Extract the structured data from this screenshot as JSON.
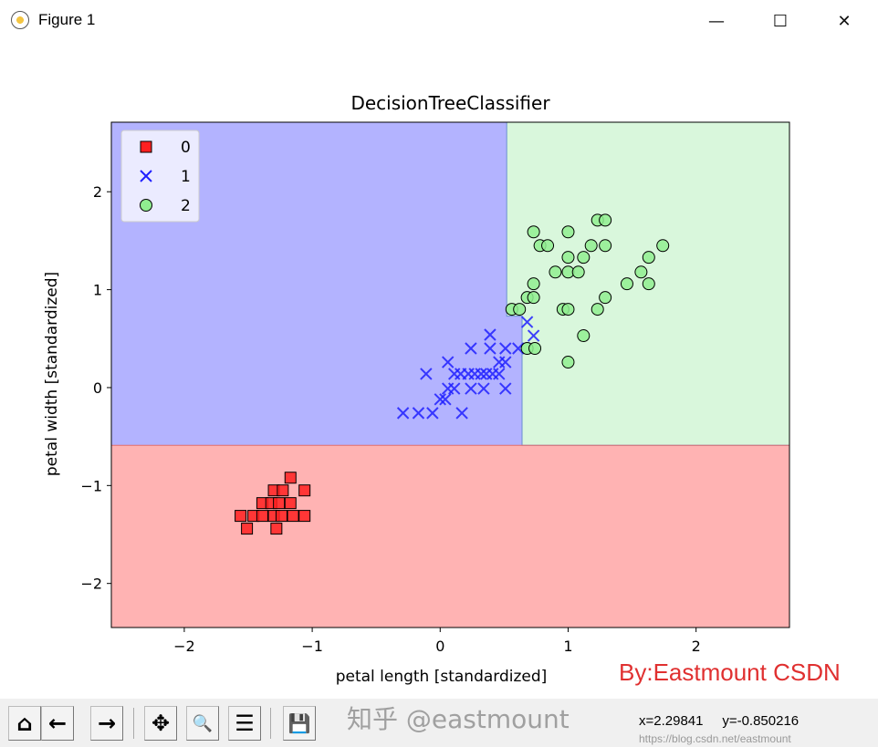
{
  "window": {
    "title": "Figure 1",
    "minimize": "—",
    "maximize": "☐",
    "close": "✕"
  },
  "toolbar": {
    "buttons": [
      {
        "name": "home",
        "glyph": "⌂"
      },
      {
        "name": "back",
        "glyph": "←"
      },
      {
        "name": "forward",
        "glyph": "→"
      },
      {
        "name": "pan",
        "glyph": "✥"
      },
      {
        "name": "zoom",
        "glyph": "🔍"
      },
      {
        "name": "configure-subplots",
        "glyph": "☰"
      },
      {
        "name": "save",
        "glyph": "💾"
      }
    ],
    "coords": "x=2.29841     y=-0.850216"
  },
  "watermarks": {
    "zhihu": "知乎 @eastmount",
    "url": "https://blog.csdn.net/eastmount"
  },
  "credit": "By:Eastmount CSDN",
  "chart_data": {
    "type": "scatter",
    "title": "DecisionTreeClassifier",
    "xlabel": "petal length [standardized]",
    "ylabel": "petal width [standardized]",
    "xlim": [
      -2.57,
      2.73
    ],
    "ylim": [
      -2.45,
      2.71
    ],
    "xticks": [
      -2,
      -1,
      0,
      1,
      2
    ],
    "yticks": [
      -2,
      -1,
      0,
      1,
      2
    ],
    "xtick_labels": [
      "−2",
      "−1",
      "0",
      "1",
      "2"
    ],
    "ytick_labels": [
      "−2",
      "−1",
      "0",
      "1",
      "2"
    ],
    "grid": false,
    "legend_placement": "upper-left",
    "decision_regions": {
      "colors": {
        "0": "#ffb3b3",
        "1": "#b3b3ff",
        "2": "#d9f7dc"
      },
      "rule": "class 0 if y < -0.59; else class 1 if x < 0.52 or (x < 0.64 and y < 0.73); else class 2"
    },
    "series": [
      {
        "name": "0",
        "marker": "square",
        "color": "#ff2020",
        "points": [
          [
            -1.17,
            -0.92
          ],
          [
            -1.3,
            -1.05
          ],
          [
            -1.23,
            -1.05
          ],
          [
            -1.06,
            -1.05
          ],
          [
            -1.39,
            -1.18
          ],
          [
            -1.32,
            -1.18
          ],
          [
            -1.26,
            -1.18
          ],
          [
            -1.17,
            -1.18
          ],
          [
            -1.56,
            -1.31
          ],
          [
            -1.46,
            -1.31
          ],
          [
            -1.39,
            -1.31
          ],
          [
            -1.3,
            -1.31
          ],
          [
            -1.24,
            -1.31
          ],
          [
            -1.15,
            -1.31
          ],
          [
            -1.06,
            -1.31
          ],
          [
            -1.51,
            -1.44
          ],
          [
            -1.28,
            -1.44
          ]
        ]
      },
      {
        "name": "1",
        "marker": "x",
        "color": "#2020ff",
        "points": [
          [
            -0.29,
            -0.26
          ],
          [
            -0.17,
            -0.26
          ],
          [
            -0.06,
            -0.26
          ],
          [
            0.17,
            -0.26
          ],
          [
            0.0,
            -0.12
          ],
          [
            0.04,
            -0.12
          ],
          [
            0.06,
            -0.01
          ],
          [
            0.11,
            -0.01
          ],
          [
            0.24,
            -0.01
          ],
          [
            0.34,
            -0.01
          ],
          [
            0.51,
            -0.01
          ],
          [
            -0.11,
            0.14
          ],
          [
            0.11,
            0.14
          ],
          [
            0.16,
            0.14
          ],
          [
            0.22,
            0.14
          ],
          [
            0.27,
            0.14
          ],
          [
            0.32,
            0.14
          ],
          [
            0.36,
            0.14
          ],
          [
            0.41,
            0.14
          ],
          [
            0.46,
            0.14
          ],
          [
            0.06,
            0.26
          ],
          [
            0.46,
            0.26
          ],
          [
            0.51,
            0.26
          ],
          [
            0.24,
            0.4
          ],
          [
            0.39,
            0.4
          ],
          [
            0.51,
            0.4
          ],
          [
            0.61,
            0.4
          ],
          [
            0.39,
            0.54
          ],
          [
            0.73,
            0.53
          ],
          [
            0.68,
            0.67
          ]
        ]
      },
      {
        "name": "2",
        "marker": "circle",
        "color": "#90ee90",
        "points": [
          [
            1.23,
            1.71
          ],
          [
            1.29,
            1.71
          ],
          [
            0.73,
            1.59
          ],
          [
            1.0,
            1.59
          ],
          [
            0.78,
            1.45
          ],
          [
            0.84,
            1.45
          ],
          [
            1.18,
            1.45
          ],
          [
            1.29,
            1.45
          ],
          [
            1.74,
            1.45
          ],
          [
            1.0,
            1.33
          ],
          [
            1.12,
            1.33
          ],
          [
            1.63,
            1.33
          ],
          [
            0.9,
            1.18
          ],
          [
            1.0,
            1.18
          ],
          [
            1.08,
            1.18
          ],
          [
            1.57,
            1.18
          ],
          [
            0.73,
            1.06
          ],
          [
            1.46,
            1.06
          ],
          [
            1.63,
            1.06
          ],
          [
            0.68,
            0.92
          ],
          [
            0.73,
            0.92
          ],
          [
            1.29,
            0.92
          ],
          [
            0.56,
            0.8
          ],
          [
            0.62,
            0.8
          ],
          [
            0.96,
            0.8
          ],
          [
            1.0,
            0.8
          ],
          [
            1.23,
            0.8
          ],
          [
            1.12,
            0.53
          ],
          [
            0.68,
            0.4
          ],
          [
            0.74,
            0.4
          ],
          [
            1.0,
            0.26
          ]
        ]
      }
    ]
  }
}
